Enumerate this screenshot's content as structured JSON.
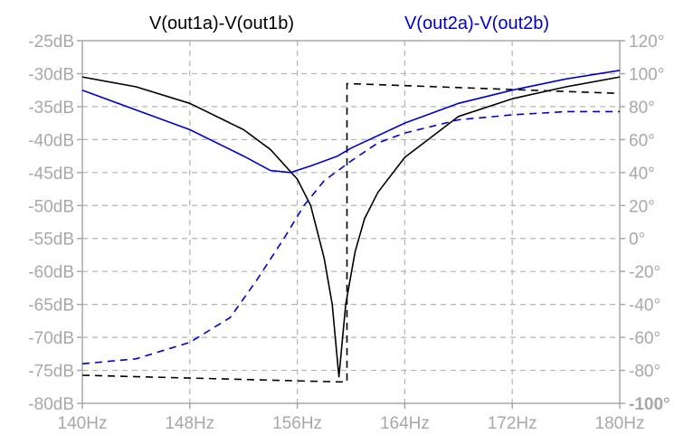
{
  "chart_data": {
    "type": "line",
    "title": "",
    "xlabel": "",
    "ylabel": "",
    "x_ticks": [
      "140Hz",
      "148Hz",
      "156Hz",
      "164Hz",
      "172Hz",
      "180Hz"
    ],
    "y_left_ticks": [
      "-25dB",
      "-30dB",
      "-35dB",
      "-40dB",
      "-45dB",
      "-50dB",
      "-55dB",
      "-60dB",
      "-65dB",
      "-70dB",
      "-75dB",
      "-80dB"
    ],
    "y_right_ticks": [
      "120°",
      "100°",
      "80°",
      "60°",
      "40°",
      "20°",
      "0°",
      "-20°",
      "-40°",
      "-60°",
      "-80°",
      "-100°"
    ],
    "xlim": [
      140,
      180
    ],
    "ylim_left": [
      -80,
      -25
    ],
    "ylim_right": [
      -100,
      120
    ],
    "grid": true,
    "legend": [
      "V(out1a)-V(out1b)",
      "V(out2a)-V(out2b)"
    ],
    "colors": {
      "series1": "#000000",
      "series2": "#0000cc",
      "grid": "#b4b4b4",
      "axis": "#a8a8a8"
    },
    "series": [
      {
        "name": "V(out1a)-V(out1b)",
        "axis": "left",
        "style": "solid",
        "color": "#000000",
        "points": [
          [
            140,
            -30.5
          ],
          [
            144,
            -32
          ],
          [
            148,
            -34.5
          ],
          [
            152,
            -38.5
          ],
          [
            154,
            -41.5
          ],
          [
            156,
            -46
          ],
          [
            157,
            -50
          ],
          [
            158,
            -58
          ],
          [
            158.6,
            -65
          ],
          [
            159.1,
            -76
          ],
          [
            159.6,
            -65
          ],
          [
            160.3,
            -57
          ],
          [
            161,
            -52
          ],
          [
            162,
            -48
          ],
          [
            164,
            -42.7
          ],
          [
            168,
            -36.5
          ],
          [
            172,
            -33.8
          ],
          [
            176,
            -32
          ],
          [
            180,
            -30.5
          ]
        ]
      },
      {
        "name": "V(out1a)-V(out1b)",
        "axis": "right",
        "style": "dashed",
        "color": "#000000",
        "points": [
          [
            140,
            -83
          ],
          [
            159,
            -87
          ],
          [
            159.01,
            -87
          ],
          [
            159.7,
            -87
          ],
          [
            159.7,
            94
          ],
          [
            180,
            88
          ]
        ]
      },
      {
        "name": "V(out2a)-V(out2b)",
        "axis": "left",
        "style": "solid",
        "color": "#0000cc",
        "points": [
          [
            140,
            -32.5
          ],
          [
            144,
            -35.5
          ],
          [
            148,
            -38.5
          ],
          [
            152,
            -42.5
          ],
          [
            154,
            -44.7
          ],
          [
            155.5,
            -45
          ],
          [
            157,
            -44
          ],
          [
            159,
            -42.5
          ],
          [
            160,
            -41.3
          ],
          [
            164,
            -37.5
          ],
          [
            168,
            -34.5
          ],
          [
            172,
            -32.5
          ],
          [
            176,
            -30.8
          ],
          [
            180,
            -29.5
          ]
        ]
      },
      {
        "name": "V(out2a)-V(out2b)",
        "axis": "right",
        "style": "dashed",
        "color": "#0000cc",
        "points": [
          [
            140,
            -76
          ],
          [
            144,
            -73
          ],
          [
            148,
            -63
          ],
          [
            151,
            -48
          ],
          [
            153,
            -25
          ],
          [
            155,
            0
          ],
          [
            156.5,
            20
          ],
          [
            158,
            35
          ],
          [
            160,
            47
          ],
          [
            162,
            58
          ],
          [
            164,
            64
          ],
          [
            168,
            72
          ],
          [
            172,
            75
          ],
          [
            176,
            77
          ],
          [
            180,
            77
          ]
        ]
      }
    ]
  }
}
